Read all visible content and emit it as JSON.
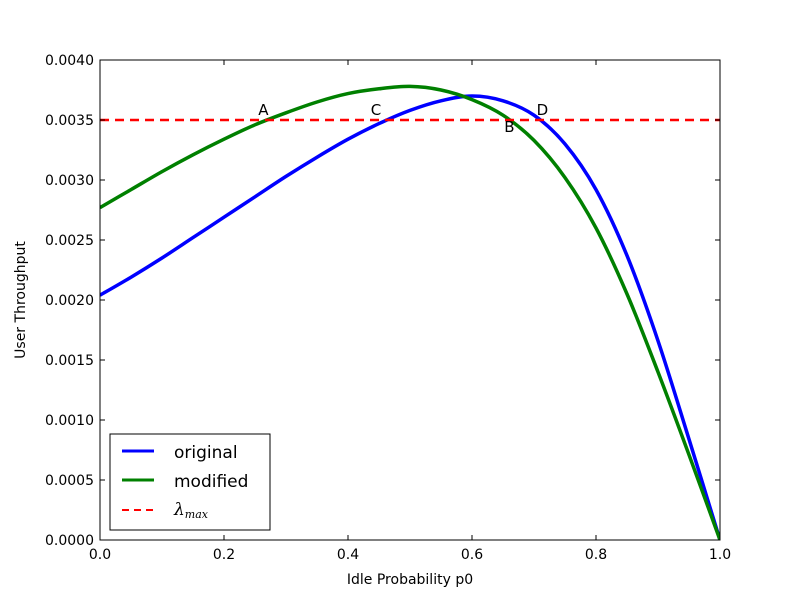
{
  "chart_data": {
    "type": "line",
    "title": "",
    "xlabel": "Idle Probability p0",
    "ylabel": "User Throughput",
    "xlim": [
      0.0,
      1.0
    ],
    "ylim": [
      0.0,
      0.004
    ],
    "grid": false,
    "legend_position": "lower left",
    "xticks": [
      "0.0",
      "0.2",
      "0.4",
      "0.6",
      "0.8",
      "1.0"
    ],
    "yticks": [
      "0.0000",
      "0.0005",
      "0.0010",
      "0.0015",
      "0.0020",
      "0.0025",
      "0.0030",
      "0.0035",
      "0.0040"
    ],
    "series": [
      {
        "name": "original",
        "color": "#0000ff",
        "style": "solid",
        "x": [
          0.0,
          0.05,
          0.1,
          0.15,
          0.2,
          0.25,
          0.3,
          0.35,
          0.4,
          0.45,
          0.5,
          0.55,
          0.6,
          0.65,
          0.7,
          0.75,
          0.8,
          0.85,
          0.9,
          0.95,
          1.0
        ],
        "values": [
          0.00204,
          0.00219,
          0.00235,
          0.00252,
          0.00269,
          0.00286,
          0.00303,
          0.00319,
          0.00334,
          0.00347,
          0.00358,
          0.00366,
          0.0037,
          0.00366,
          0.00354,
          0.0033,
          0.00292,
          0.00237,
          0.00166,
          0.00084,
          0.0
        ]
      },
      {
        "name": "modified",
        "color": "#008000",
        "style": "solid",
        "x": [
          0.0,
          0.05,
          0.1,
          0.15,
          0.2,
          0.25,
          0.3,
          0.35,
          0.4,
          0.45,
          0.5,
          0.55,
          0.6,
          0.65,
          0.7,
          0.75,
          0.8,
          0.85,
          0.9,
          0.95,
          1.0
        ],
        "values": [
          0.00277,
          0.00292,
          0.00307,
          0.00321,
          0.00334,
          0.00346,
          0.00356,
          0.00365,
          0.00372,
          0.00376,
          0.00378,
          0.00375,
          0.00367,
          0.00354,
          0.00333,
          0.00302,
          0.0026,
          0.00205,
          0.0014,
          0.00071,
          0.0
        ]
      },
      {
        "name": "λmax",
        "legend_label_tex": "\\lambda_{max}",
        "color": "#ff0000",
        "style": "dashed",
        "x": [
          0.0,
          1.0
        ],
        "values": [
          0.0035,
          0.0035
        ]
      }
    ],
    "annotations": [
      {
        "text": "A",
        "x": 0.27,
        "y": 0.0035
      },
      {
        "text": "C",
        "x": 0.45,
        "y": 0.0035
      },
      {
        "text": "B",
        "x": 0.67,
        "y": 0.0035
      },
      {
        "text": "D",
        "x": 0.72,
        "y": 0.0035
      }
    ]
  },
  "legend": {
    "items": [
      {
        "label": "original",
        "color": "#0000ff"
      },
      {
        "label": "modified",
        "color": "#008000"
      },
      {
        "label_main": "λ",
        "label_sub": "max",
        "color": "#ff0000"
      }
    ]
  }
}
